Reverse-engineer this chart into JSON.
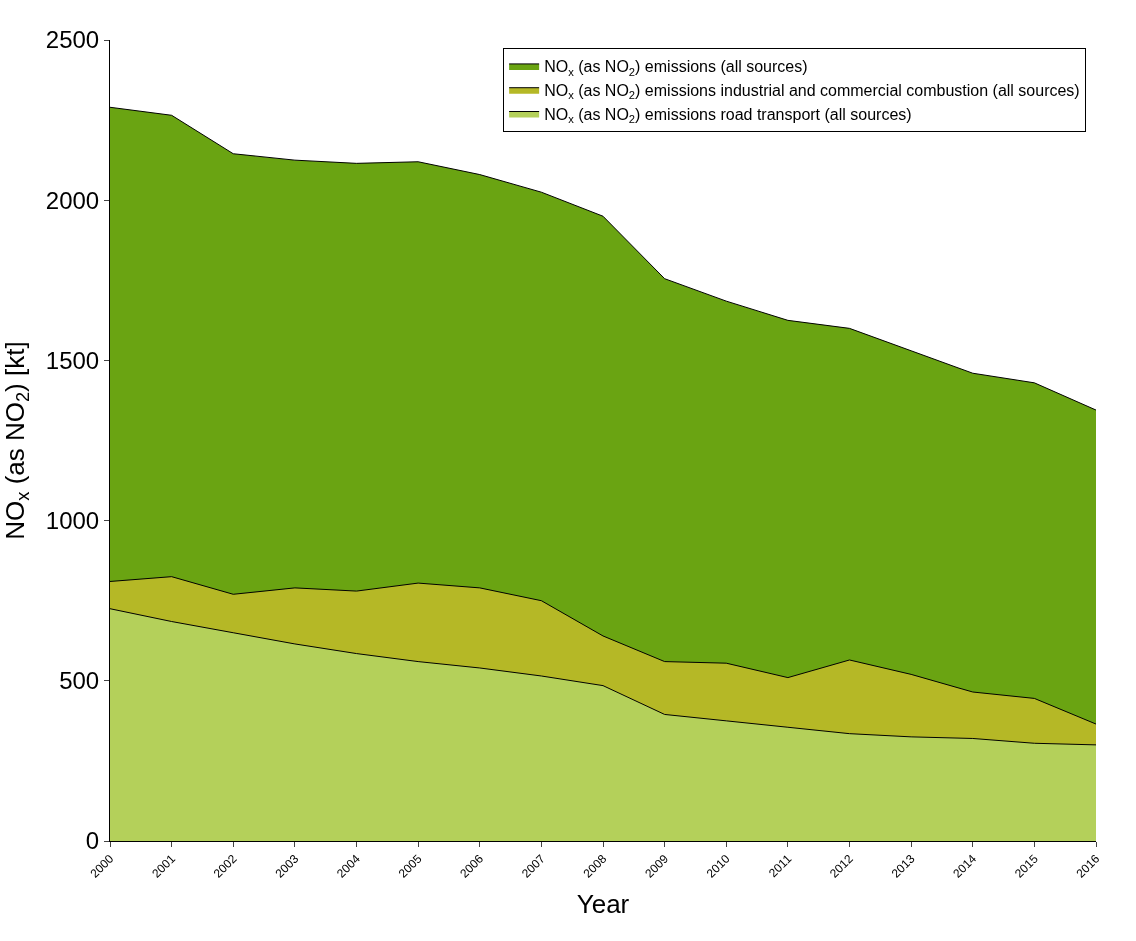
{
  "chart_data": {
    "type": "area",
    "xlabel": "Year",
    "ylabel": "NO$_{x}$ (as NO$_{2}$) [kt]",
    "x": [
      2000,
      2001,
      2002,
      2003,
      2004,
      2005,
      2006,
      2007,
      2008,
      2009,
      2010,
      2011,
      2012,
      2013,
      2014,
      2015,
      2016
    ],
    "series": [
      {
        "name": "NO$_{x}$ (as NO$_{2}$) emissions (all sources)",
        "color": "#6aa412",
        "values": [
          2290,
          2265,
          2145,
          2125,
          2115,
          2120,
          2080,
          2025,
          1950,
          1755,
          1685,
          1625,
          1600,
          1530,
          1460,
          1430,
          1345
        ]
      },
      {
        "name": "NO$_{x}$ (as NO$_{2}$) emissions industrial and commercial combustion (all sources)",
        "color": "#b5b826",
        "values": [
          810,
          825,
          770,
          790,
          780,
          805,
          790,
          750,
          640,
          560,
          555,
          510,
          565,
          520,
          465,
          445,
          365
        ]
      },
      {
        "name": "NO$_{x}$ (as NO$_{2}$) emissions road transport (all sources)",
        "color": "#b4d05a",
        "values": [
          725,
          685,
          650,
          615,
          585,
          560,
          540,
          515,
          485,
          395,
          375,
          355,
          335,
          325,
          320,
          305,
          300
        ]
      }
    ],
    "xlim": [
      2000,
      2016
    ],
    "xticks": [
      2000,
      2001,
      2002,
      2003,
      2004,
      2005,
      2006,
      2007,
      2008,
      2009,
      2010,
      2011,
      2012,
      2013,
      2014,
      2015,
      2016
    ],
    "ylim": [
      0,
      2500
    ],
    "yticks": [
      0,
      500,
      1000,
      1500,
      2000,
      2500
    ],
    "legend": "top right"
  }
}
